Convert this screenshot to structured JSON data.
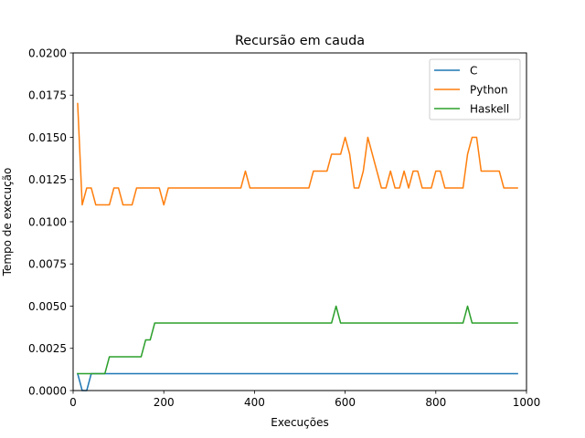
{
  "chart_data": {
    "type": "line",
    "title": "Recursão em cauda",
    "xlabel": "Execuções",
    "ylabel": "Tempo de execução",
    "xlim": [
      0,
      1000
    ],
    "ylim": [
      0,
      0.02
    ],
    "xticks": [
      0,
      200,
      400,
      600,
      800,
      1000
    ],
    "xtick_labels": [
      "0",
      "200",
      "400",
      "600",
      "800",
      "1000"
    ],
    "yticks": [
      0,
      0.0025,
      0.005,
      0.0075,
      0.01,
      0.0125,
      0.015,
      0.0175,
      0.02
    ],
    "ytick_labels": [
      "0.0000",
      "0.0025",
      "0.0050",
      "0.0075",
      "0.0100",
      "0.0125",
      "0.0150",
      "0.0175",
      "0.0200"
    ],
    "grid": false,
    "legend": "top-right",
    "x": [
      10,
      20,
      30,
      40,
      50,
      60,
      70,
      80,
      90,
      100,
      110,
      120,
      130,
      140,
      150,
      160,
      170,
      180,
      190,
      200,
      210,
      220,
      230,
      240,
      250,
      260,
      270,
      280,
      290,
      300,
      310,
      320,
      330,
      340,
      350,
      360,
      370,
      380,
      390,
      400,
      410,
      420,
      430,
      440,
      450,
      460,
      470,
      480,
      490,
      500,
      510,
      520,
      530,
      540,
      550,
      560,
      570,
      580,
      590,
      600,
      610,
      620,
      630,
      640,
      650,
      660,
      670,
      680,
      690,
      700,
      710,
      720,
      730,
      740,
      750,
      760,
      770,
      780,
      790,
      800,
      810,
      820,
      830,
      840,
      850,
      860,
      870,
      880,
      890,
      900,
      910,
      920,
      930,
      940,
      950,
      960,
      970,
      980
    ],
    "series": [
      {
        "name": "C",
        "color": "#1f77b4",
        "values": [
          0.001,
          0.0,
          0.0,
          0.001,
          0.001,
          0.001,
          0.001,
          0.001,
          0.001,
          0.001,
          0.001,
          0.001,
          0.001,
          0.001,
          0.001,
          0.001,
          0.001,
          0.001,
          0.001,
          0.001,
          0.001,
          0.001,
          0.001,
          0.001,
          0.001,
          0.001,
          0.001,
          0.001,
          0.001,
          0.001,
          0.001,
          0.001,
          0.001,
          0.001,
          0.001,
          0.001,
          0.001,
          0.001,
          0.001,
          0.001,
          0.001,
          0.001,
          0.001,
          0.001,
          0.001,
          0.001,
          0.001,
          0.001,
          0.001,
          0.001,
          0.001,
          0.001,
          0.001,
          0.001,
          0.001,
          0.001,
          0.001,
          0.001,
          0.001,
          0.001,
          0.001,
          0.001,
          0.001,
          0.001,
          0.001,
          0.001,
          0.001,
          0.001,
          0.001,
          0.001,
          0.001,
          0.001,
          0.001,
          0.001,
          0.001,
          0.001,
          0.001,
          0.001,
          0.001,
          0.001,
          0.001,
          0.001,
          0.001,
          0.001,
          0.001,
          0.001,
          0.001,
          0.001,
          0.001,
          0.001,
          0.001,
          0.001,
          0.001,
          0.001,
          0.001,
          0.001,
          0.001,
          0.001
        ]
      },
      {
        "name": "Python",
        "color": "#ff7f0e",
        "values": [
          0.017,
          0.011,
          0.012,
          0.012,
          0.011,
          0.011,
          0.011,
          0.011,
          0.012,
          0.012,
          0.011,
          0.011,
          0.011,
          0.012,
          0.012,
          0.012,
          0.012,
          0.012,
          0.012,
          0.011,
          0.012,
          0.012,
          0.012,
          0.012,
          0.012,
          0.012,
          0.012,
          0.012,
          0.012,
          0.012,
          0.012,
          0.012,
          0.012,
          0.012,
          0.012,
          0.012,
          0.012,
          0.013,
          0.012,
          0.012,
          0.012,
          0.012,
          0.012,
          0.012,
          0.012,
          0.012,
          0.012,
          0.012,
          0.012,
          0.012,
          0.012,
          0.012,
          0.013,
          0.013,
          0.013,
          0.013,
          0.014,
          0.014,
          0.014,
          0.015,
          0.014,
          0.012,
          0.012,
          0.013,
          0.015,
          0.014,
          0.013,
          0.012,
          0.012,
          0.013,
          0.012,
          0.012,
          0.013,
          0.012,
          0.013,
          0.013,
          0.012,
          0.012,
          0.012,
          0.013,
          0.013,
          0.012,
          0.012,
          0.012,
          0.012,
          0.012,
          0.014,
          0.015,
          0.015,
          0.013,
          0.013,
          0.013,
          0.013,
          0.013,
          0.012,
          0.012,
          0.012,
          0.012
        ]
      },
      {
        "name": "Haskell",
        "color": "#2ca02c",
        "values": [
          0.001,
          0.001,
          0.001,
          0.001,
          0.001,
          0.001,
          0.001,
          0.002,
          0.002,
          0.002,
          0.002,
          0.002,
          0.002,
          0.002,
          0.002,
          0.003,
          0.003,
          0.004,
          0.004,
          0.004,
          0.004,
          0.004,
          0.004,
          0.004,
          0.004,
          0.004,
          0.004,
          0.004,
          0.004,
          0.004,
          0.004,
          0.004,
          0.004,
          0.004,
          0.004,
          0.004,
          0.004,
          0.004,
          0.004,
          0.004,
          0.004,
          0.004,
          0.004,
          0.004,
          0.004,
          0.004,
          0.004,
          0.004,
          0.004,
          0.004,
          0.004,
          0.004,
          0.004,
          0.004,
          0.004,
          0.004,
          0.004,
          0.005,
          0.004,
          0.004,
          0.004,
          0.004,
          0.004,
          0.004,
          0.004,
          0.004,
          0.004,
          0.004,
          0.004,
          0.004,
          0.004,
          0.004,
          0.004,
          0.004,
          0.004,
          0.004,
          0.004,
          0.004,
          0.004,
          0.004,
          0.004,
          0.004,
          0.004,
          0.004,
          0.004,
          0.004,
          0.005,
          0.004,
          0.004,
          0.004,
          0.004,
          0.004,
          0.004,
          0.004,
          0.004,
          0.004,
          0.004,
          0.004
        ]
      }
    ]
  }
}
